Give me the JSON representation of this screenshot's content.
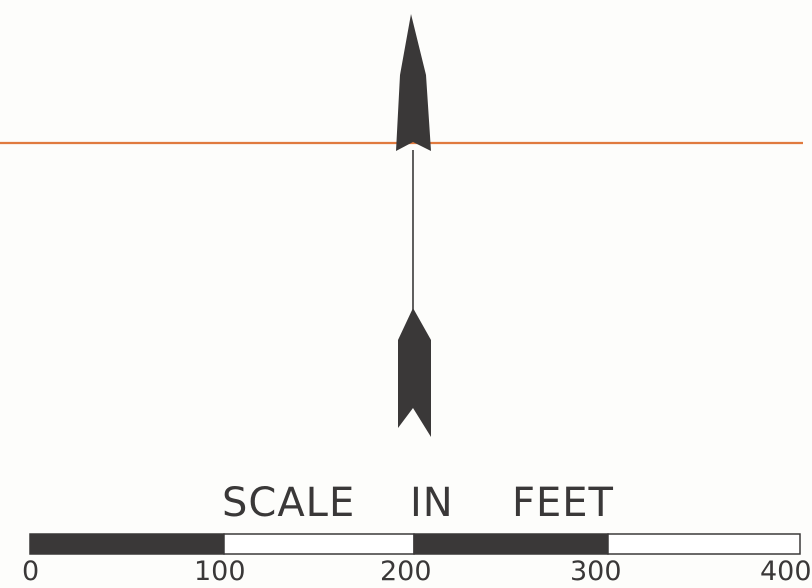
{
  "scale": {
    "words": [
      "SCALE",
      "IN",
      "FEET"
    ],
    "ticks": [
      "0",
      "100",
      "200",
      "300",
      "400"
    ],
    "units": "FEET",
    "segment_fill": [
      "dark",
      "light",
      "dark",
      "light"
    ]
  },
  "colors": {
    "background": "#fdfdfb",
    "ink": "#3a3838",
    "line": "#e07a3e"
  },
  "north_arrow": {
    "icon": "north-arrow-icon",
    "direction": "up"
  }
}
